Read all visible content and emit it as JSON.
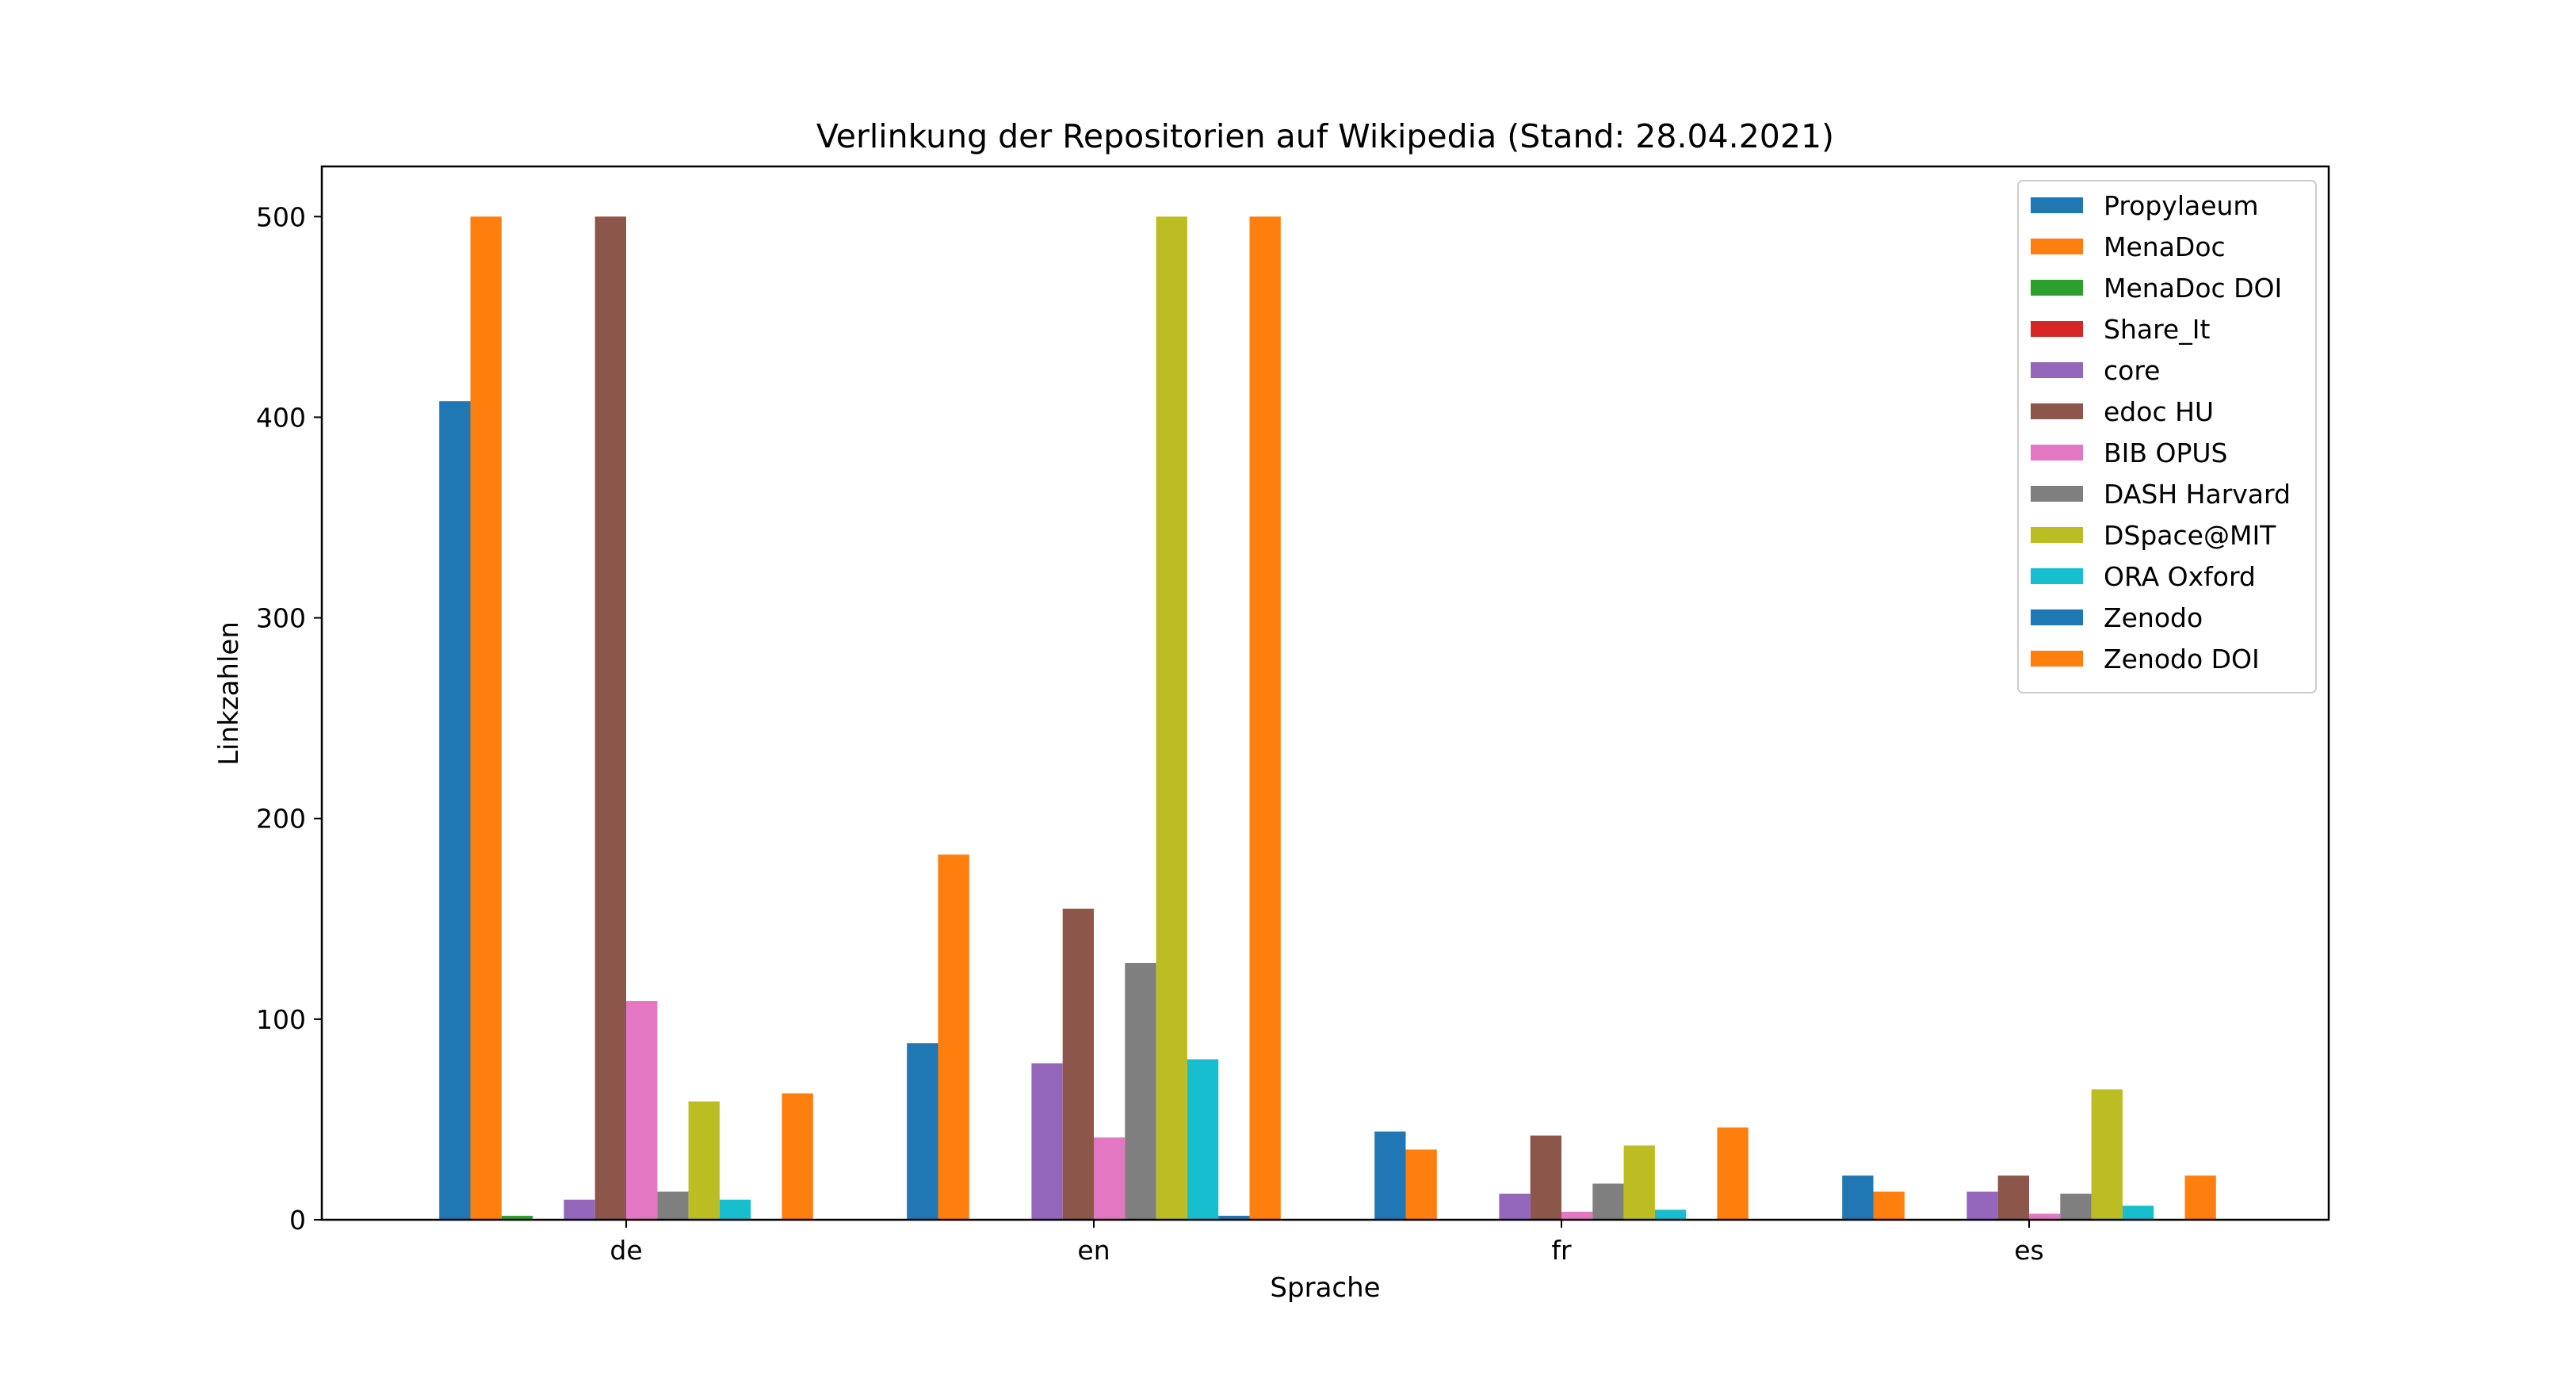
{
  "chart_data": {
    "type": "bar",
    "title": "Verlinkung der Repositorien auf Wikipedia (Stand: 28.04.2021)",
    "xlabel": "Sprache",
    "ylabel": "Linkzahlen",
    "categories": [
      "de",
      "en",
      "fr",
      "es"
    ],
    "ylim": [
      0,
      525
    ],
    "yticks": [
      0,
      100,
      200,
      300,
      400,
      500
    ],
    "ytick_labels": [
      "0",
      "100",
      "200",
      "300",
      "400",
      "500"
    ],
    "grid": false,
    "legend_position": "top-right",
    "series": [
      {
        "name": "Propylaeum",
        "color": "#1f77b4",
        "values": [
          408,
          88,
          44,
          22
        ]
      },
      {
        "name": "MenaDoc",
        "color": "#ff7f0e",
        "values": [
          500,
          182,
          35,
          14
        ]
      },
      {
        "name": "MenaDoc DOI",
        "color": "#2ca02c",
        "values": [
          2,
          0,
          0,
          0
        ]
      },
      {
        "name": "Share_It",
        "color": "#d62728",
        "values": [
          0,
          0,
          0,
          0
        ]
      },
      {
        "name": "core",
        "color": "#9467bd",
        "values": [
          10,
          78,
          13,
          14
        ]
      },
      {
        "name": "edoc HU",
        "color": "#8c564b",
        "values": [
          500,
          155,
          42,
          22
        ]
      },
      {
        "name": "BIB OPUS",
        "color": "#e377c2",
        "values": [
          109,
          41,
          4,
          3
        ]
      },
      {
        "name": "DASH Harvard",
        "color": "#7f7f7f",
        "values": [
          14,
          128,
          18,
          13
        ]
      },
      {
        "name": "DSpace@MIT",
        "color": "#bcbd22",
        "values": [
          59,
          500,
          37,
          65
        ]
      },
      {
        "name": "ORA Oxford",
        "color": "#17becf",
        "values": [
          10,
          80,
          5,
          7
        ]
      },
      {
        "name": "Zenodo",
        "color": "#1f77b4",
        "values": [
          0,
          2,
          0,
          0
        ]
      },
      {
        "name": "Zenodo DOI",
        "color": "#ff7f0e",
        "values": [
          63,
          500,
          46,
          22
        ]
      }
    ]
  }
}
